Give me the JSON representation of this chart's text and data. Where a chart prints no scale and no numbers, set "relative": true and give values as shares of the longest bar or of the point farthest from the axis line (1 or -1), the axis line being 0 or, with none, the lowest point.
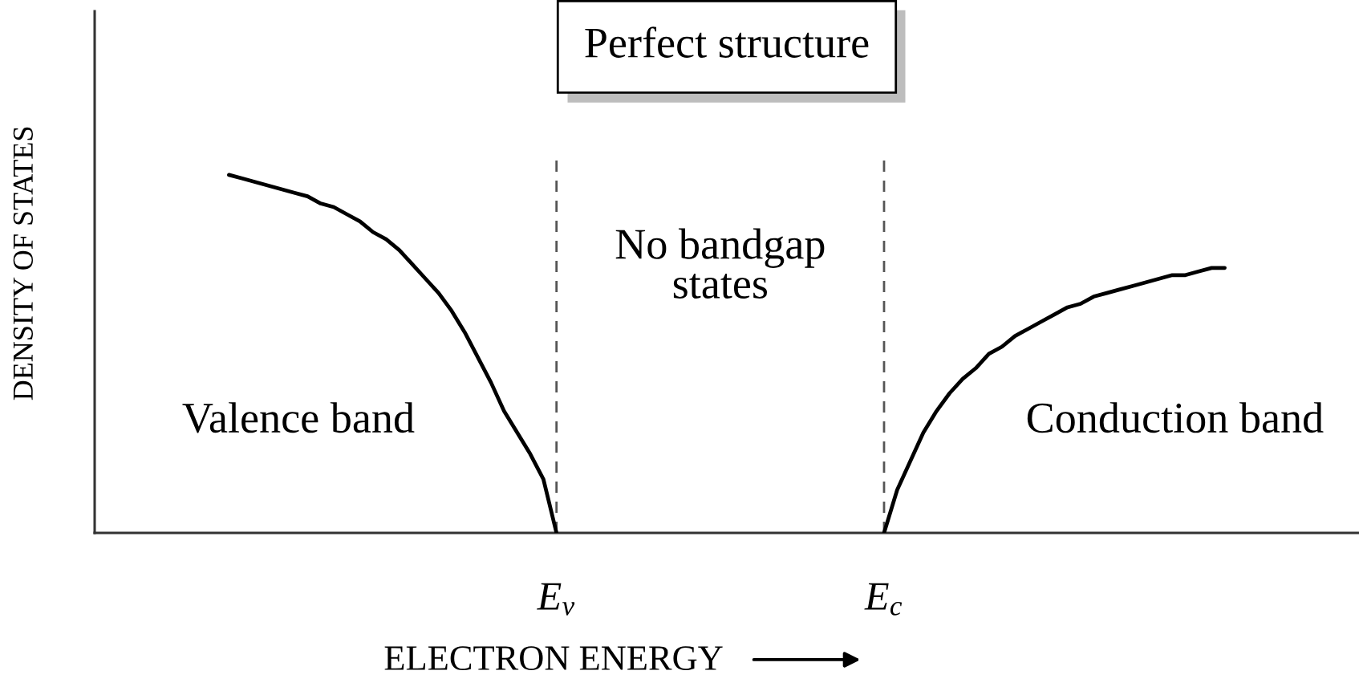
{
  "chart_data": {
    "type": "line",
    "title": "Perfect structure",
    "xlabel": "ELECTRON ENERGY",
    "ylabel": "DENSITY OF STATES",
    "relative": true,
    "line_style": "solid",
    "categories": [
      null,
      null,
      null,
      null,
      null,
      null,
      null,
      null,
      null,
      null,
      null,
      null,
      null,
      null,
      null,
      null,
      null,
      null,
      null,
      null,
      null,
      null,
      null,
      null,
      null,
      null,
      null,
      null,
      null,
      null,
      null,
      null,
      null,
      null,
      null,
      "E$_{v}$",
      null,
      null,
      null,
      null,
      null,
      null,
      null,
      null,
      null,
      null,
      null,
      null,
      null,
      null,
      null,
      null,
      null,
      null,
      null,
      null,
      null,
      null,
      null,
      null,
      "E$_{c}$",
      null,
      null,
      null,
      null,
      null,
      null,
      null,
      null,
      null,
      null,
      null,
      null,
      null,
      null,
      null,
      null,
      null,
      null,
      null,
      null,
      null,
      null,
      null,
      null,
      null,
      null,
      null,
      null,
      null,
      null,
      null,
      null,
      null,
      null,
      null,
      null
    ],
    "series": [
      {
        "name": "Valence band",
        "color": "#000000",
        "values": [
          null,
          null,
          null,
          null,
          null,
          null,
          null,
          null,
          null,
          null,
          1,
          0.99,
          0.98,
          0.97,
          0.96,
          0.95,
          0.94,
          0.92,
          0.91,
          0.89,
          0.87,
          0.84,
          0.82,
          0.79,
          0.75,
          0.71,
          0.67,
          0.62,
          0.56,
          0.49,
          0.42,
          0.34,
          0.28,
          0.22,
          0.15,
          0,
          null,
          null,
          null,
          null,
          null,
          null,
          null,
          null,
          null,
          null,
          null,
          null,
          null,
          null,
          null,
          null,
          null,
          null,
          null,
          null,
          null,
          null,
          null,
          null,
          null,
          null,
          null,
          null,
          null,
          null,
          null,
          null,
          null,
          null,
          null,
          null,
          null,
          null,
          null,
          null,
          null,
          null,
          null,
          null,
          null,
          null,
          null,
          null,
          null,
          null,
          null,
          null,
          null,
          null,
          null,
          null,
          null,
          null,
          null,
          null,
          null
        ]
      },
      {
        "name": "Conduction band",
        "color": "#000000",
        "values": [
          null,
          null,
          null,
          null,
          null,
          null,
          null,
          null,
          null,
          null,
          null,
          null,
          null,
          null,
          null,
          null,
          null,
          null,
          null,
          null,
          null,
          null,
          null,
          null,
          null,
          null,
          null,
          null,
          null,
          null,
          null,
          null,
          null,
          null,
          null,
          null,
          null,
          null,
          null,
          null,
          null,
          null,
          null,
          null,
          null,
          null,
          null,
          null,
          null,
          null,
          null,
          null,
          null,
          null,
          null,
          null,
          null,
          null,
          null,
          null,
          0,
          0.12,
          0.2,
          0.28,
          0.34,
          0.39,
          0.43,
          0.46,
          0.5,
          0.52,
          0.55,
          0.57,
          0.59,
          0.61,
          0.63,
          0.64,
          0.66,
          0.67,
          0.68,
          0.69,
          0.7,
          0.71,
          0.72,
          0.72,
          0.73,
          0.74,
          0.74,
          null,
          null,
          null,
          null,
          null,
          null,
          null,
          null,
          null,
          null
        ]
      }
    ],
    "ref_lines": [
      {
        "axis": "x",
        "value": "E$_{v}$",
        "color": "#555555",
        "line_style": "dashed"
      },
      {
        "axis": "x",
        "value": "E$_{c}$",
        "color": "#555555",
        "line_style": "dashed"
      }
    ],
    "annotations": [
      "No bandgap\nstates"
    ]
  }
}
